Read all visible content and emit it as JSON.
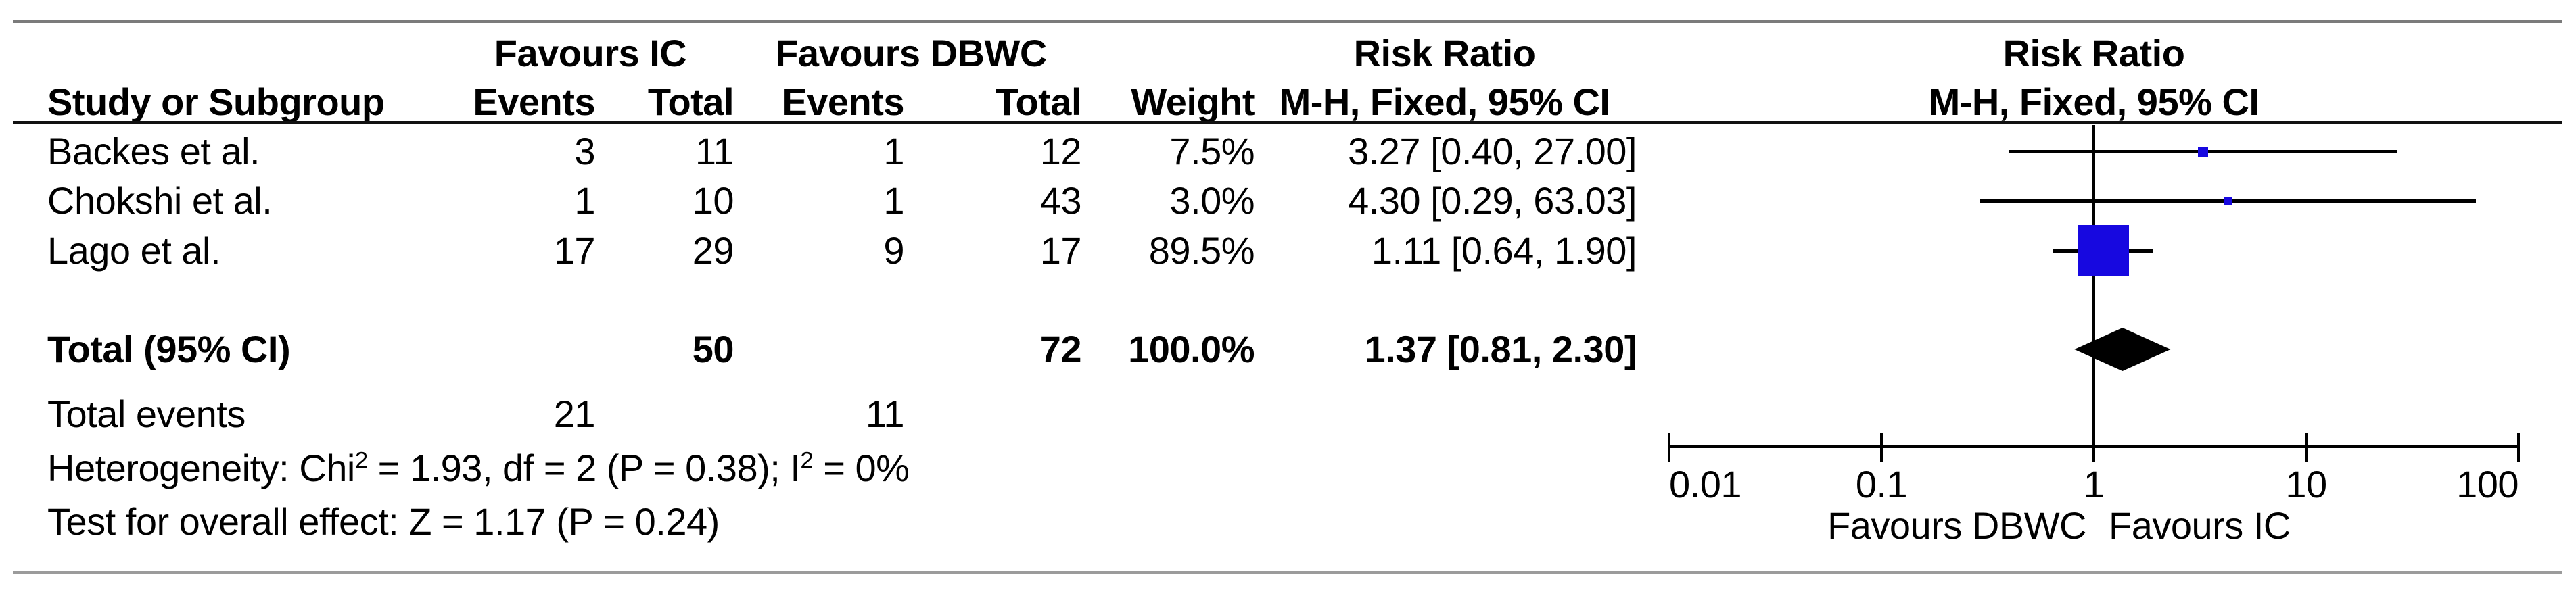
{
  "figure": {
    "kind": "forest-plot",
    "rule_color_top": "#7b7b7b",
    "rule_color_bottom": "#9b9b9b",
    "rule_color_header": "#111111"
  },
  "table": {
    "header": {
      "group1": "Favours IC",
      "group2": "Favours DBWC",
      "rr_title_text_col": "Risk Ratio",
      "rr_title_plot_col": "Risk Ratio",
      "study": "Study or Subgroup",
      "events1": "Events",
      "total1": "Total",
      "events2": "Events",
      "total2": "Total",
      "weight": "Weight",
      "mh_text_col": "M-H, Fixed, 95% CI",
      "mh_plot_col": "M-H, Fixed, 95% CI"
    },
    "rows": [
      {
        "study": "Backes et al.",
        "e1": "3",
        "t1": "11",
        "e2": "1",
        "t2": "12",
        "weight": "7.5%",
        "rr": "3.27 [0.40, 27.00]"
      },
      {
        "study": "Chokshi et al.",
        "e1": "1",
        "t1": "10",
        "e2": "1",
        "t2": "43",
        "weight": "3.0%",
        "rr": "4.30 [0.29, 63.03]"
      },
      {
        "study": "Lago et al.",
        "e1": "17",
        "t1": "29",
        "e2": "9",
        "t2": "17",
        "weight": "89.5%",
        "rr": "1.11 [0.64, 1.90]"
      }
    ],
    "total_row": {
      "label": "Total (95% CI)",
      "t1": "50",
      "t2": "72",
      "weight": "100.0%",
      "rr": "1.37 [0.81, 2.30]"
    },
    "total_events": {
      "label": "Total events",
      "e1": "21",
      "e2": "11"
    },
    "heterogeneity": {
      "prefix": "Heterogeneity: Chi",
      "sup1": "2",
      "mid": " = 1.93, df = 2 (P = 0.38); I",
      "sup2": "2",
      "suffix": " = 0%"
    },
    "overall_effect": "Test for overall effect: Z = 1.17 (P = 0.24)"
  },
  "chart_data": {
    "type": "scatter",
    "subtype": "forest-plot",
    "title": "Risk Ratio",
    "effect_measure": "M-H, Fixed, 95% CI",
    "x_scale": "log10",
    "x_range": [
      0.01,
      100
    ],
    "null_line": 1,
    "axis_ticks": [
      0.01,
      0.1,
      1,
      10,
      100
    ],
    "tick_labels": [
      "0.01",
      "0.1",
      "1",
      "10",
      "100"
    ],
    "axis_label_left": "Favours DBWC",
    "axis_label_right": "Favours IC",
    "marker_color": "#1708e0",
    "diamond_color": "#000000",
    "studies": [
      {
        "name": "Backes et al.",
        "estimate": 3.27,
        "ci_low": 0.4,
        "ci_high": 27.0,
        "weight_pct": 7.5
      },
      {
        "name": "Chokshi et al.",
        "estimate": 4.3,
        "ci_low": 0.29,
        "ci_high": 63.03,
        "weight_pct": 3.0
      },
      {
        "name": "Lago et al.",
        "estimate": 1.11,
        "ci_low": 0.64,
        "ci_high": 1.9,
        "weight_pct": 89.5
      }
    ],
    "total": {
      "name": "Total (95% CI)",
      "estimate": 1.37,
      "ci_low": 0.81,
      "ci_high": 2.3,
      "weight_pct": 100.0
    }
  }
}
